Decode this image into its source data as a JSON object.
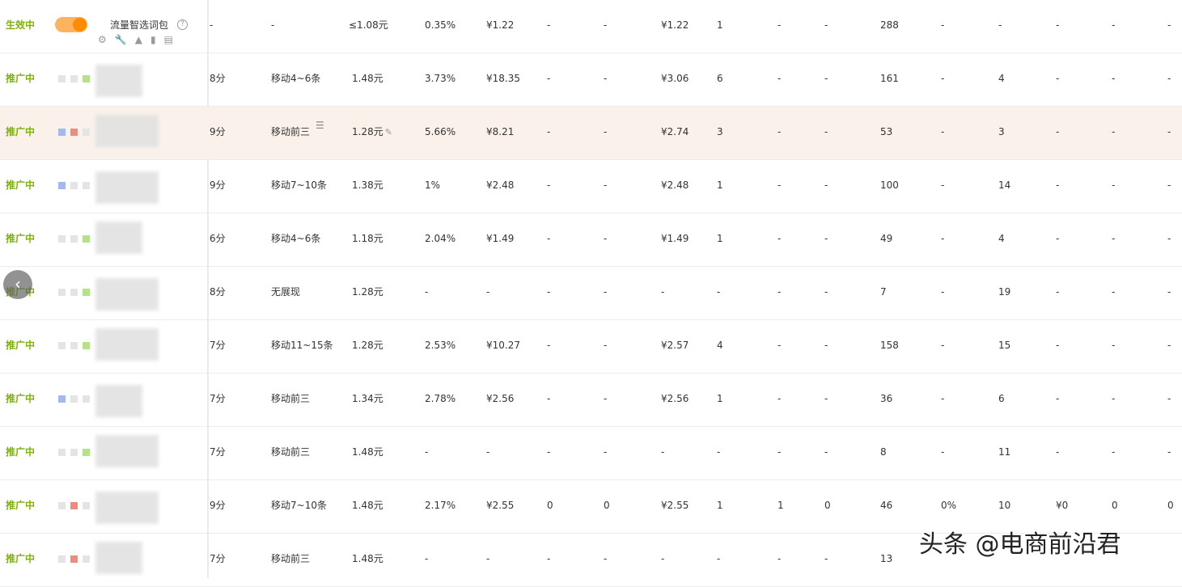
{
  "header": {
    "status": "生效中",
    "package_label": "流量智选词包",
    "help_symbol": "?",
    "cols": [
      "-",
      "-",
      "≤1.08元",
      "0.35%",
      "¥1.22",
      "-",
      "-",
      "¥1.22",
      "1",
      "-",
      "-",
      "288",
      "-",
      "-",
      "-",
      "-",
      "-"
    ]
  },
  "rows": [
    {
      "status": "推广中",
      "c": [
        "8分",
        "移动4~6条",
        "1.48元",
        "3.73%",
        "¥18.35",
        "-",
        "-",
        "¥3.06",
        "6",
        "-",
        "-",
        "161",
        "-",
        "4",
        "-",
        "-",
        "-"
      ]
    },
    {
      "status": "推广中",
      "c": [
        "9分",
        "移动前三",
        "1.28元",
        "5.66%",
        "¥8.21",
        "-",
        "-",
        "¥2.74",
        "3",
        "-",
        "-",
        "53",
        "-",
        "3",
        "-",
        "-",
        "-"
      ]
    },
    {
      "status": "推广中",
      "c": [
        "9分",
        "移动7~10条",
        "1.38元",
        "1%",
        "¥2.48",
        "-",
        "-",
        "¥2.48",
        "1",
        "-",
        "-",
        "100",
        "-",
        "14",
        "-",
        "-",
        "-"
      ]
    },
    {
      "status": "推广中",
      "c": [
        "6分",
        "移动4~6条",
        "1.18元",
        "2.04%",
        "¥1.49",
        "-",
        "-",
        "¥1.49",
        "1",
        "-",
        "-",
        "49",
        "-",
        "4",
        "-",
        "-",
        "-"
      ]
    },
    {
      "status": "推广中",
      "c": [
        "8分",
        "无展现",
        "1.28元",
        "-",
        "-",
        "-",
        "-",
        "-",
        "-",
        "-",
        "-",
        "7",
        "-",
        "19",
        "-",
        "-",
        "-"
      ]
    },
    {
      "status": "推广中",
      "c": [
        "7分",
        "移动11~15条",
        "1.28元",
        "2.53%",
        "¥10.27",
        "-",
        "-",
        "¥2.57",
        "4",
        "-",
        "-",
        "158",
        "-",
        "15",
        "-",
        "-",
        "-"
      ]
    },
    {
      "status": "推广中",
      "c": [
        "7分",
        "移动前三",
        "1.34元",
        "2.78%",
        "¥2.56",
        "-",
        "-",
        "¥2.56",
        "1",
        "-",
        "-",
        "36",
        "-",
        "6",
        "-",
        "-",
        "-"
      ]
    },
    {
      "status": "推广中",
      "c": [
        "7分",
        "移动前三",
        "1.48元",
        "-",
        "-",
        "-",
        "-",
        "-",
        "-",
        "-",
        "-",
        "8",
        "-",
        "11",
        "-",
        "-",
        "-"
      ]
    },
    {
      "status": "推广中",
      "c": [
        "9分",
        "移动7~10条",
        "1.48元",
        "2.17%",
        "¥2.55",
        "0",
        "0",
        "¥2.55",
        "1",
        "1",
        "0",
        "46",
        "0%",
        "10",
        "¥0",
        "0",
        "0"
      ]
    },
    {
      "status": "推广中",
      "c": [
        "7分",
        "移动前三",
        "1.48元",
        "-",
        "-",
        "-",
        "-",
        "-",
        "-",
        "-",
        "-",
        "13",
        "",
        "",
        "",
        "",
        ""
      ]
    }
  ],
  "row_markers": [
    [
      "gray",
      "gray",
      "green"
    ],
    [
      "blue",
      "red",
      "gray"
    ],
    [
      "blue",
      "gray",
      "gray"
    ],
    [
      "gray",
      "gray",
      "green"
    ],
    [
      "gray",
      "gray",
      "green"
    ],
    [
      "gray",
      "gray",
      "green"
    ],
    [
      "blue",
      "gray",
      "gray"
    ],
    [
      "gray",
      "gray",
      "green"
    ],
    [
      "gray",
      "red",
      "gray"
    ],
    [
      "gray",
      "red",
      "gray"
    ]
  ],
  "colors": {
    "gray": "#e4e4e4",
    "green": "#b7e08a",
    "blue": "#a4b8ee",
    "red": "#f08b7c",
    "status": "#7cb305",
    "highlight": "#f9f1ea"
  },
  "icons": {
    "tools": [
      "gear-icon",
      "wrench-icon",
      "chart-icon",
      "bar-chart-icon",
      "clipboard-icon"
    ],
    "list": "list-icon",
    "pencil": "pencil-icon",
    "prev": "chevron-left-icon"
  },
  "watermark": "头条 @电商前沿君"
}
